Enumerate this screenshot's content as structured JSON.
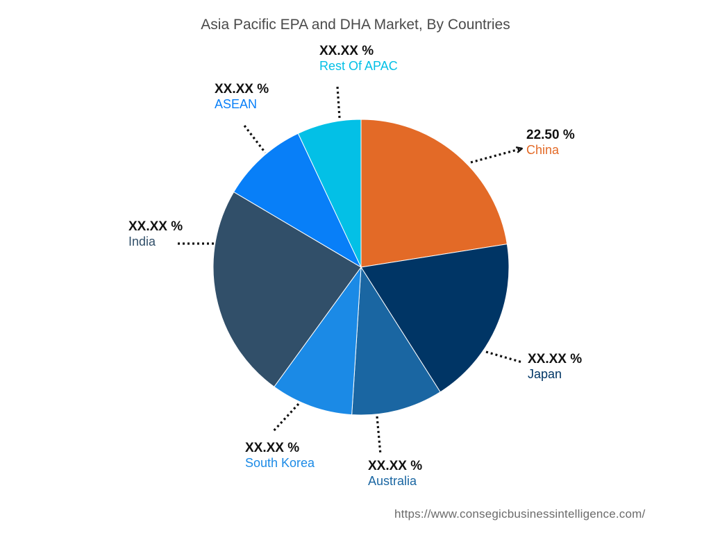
{
  "chart_data": {
    "type": "pie",
    "title": "Asia Pacific EPA and DHA Market, By Countries",
    "start_angle_deg": 0,
    "direction": "clockwise",
    "slices": [
      {
        "name": "China",
        "label": "22.50 %",
        "value": 22.5,
        "color": "#e36a27"
      },
      {
        "name": "Japan",
        "label": "XX.XX %",
        "value": 18.5,
        "color": "#003565"
      },
      {
        "name": "Australia",
        "label": "XX.XX %",
        "value": 10.0,
        "color": "#1a66a2"
      },
      {
        "name": "South Korea",
        "label": "XX.XX %",
        "value": 9.0,
        "color": "#1b8ae6"
      },
      {
        "name": "India",
        "label": "XX.XX %",
        "value": 23.5,
        "color": "#314f69"
      },
      {
        "name": "ASEAN",
        "label": "XX.XX %",
        "value": 9.5,
        "color": "#087ff8"
      },
      {
        "name": "Rest Of APAC",
        "label": "XX.XX %",
        "value": 7.0,
        "color": "#03c0e6"
      }
    ]
  },
  "source": {
    "url": "https://www.consegicbusinessintelligence.com/"
  }
}
